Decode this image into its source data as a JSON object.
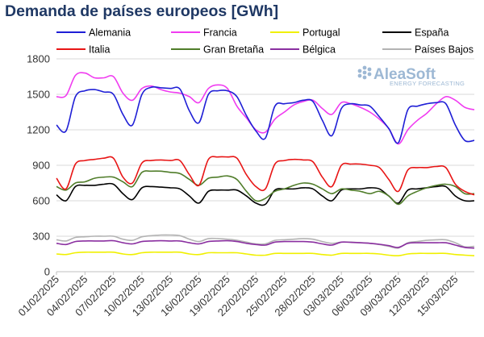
{
  "chart_data": {
    "type": "line",
    "title": "Demanda de países europeos [GWh]",
    "ylim": [
      0,
      1800
    ],
    "yticks": [
      0,
      300,
      600,
      900,
      1200,
      1500,
      1800
    ],
    "x_start": "01/02/2025",
    "x_end": "17/03/2025",
    "xtick_labels": [
      "01/02/2025",
      "04/02/2025",
      "07/02/2025",
      "10/02/2025",
      "13/02/2025",
      "16/02/2025",
      "19/02/2025",
      "22/02/2025",
      "25/02/2025",
      "28/02/2025",
      "03/03/2025",
      "06/03/2025",
      "09/03/2025",
      "12/03/2025",
      "15/03/2025"
    ],
    "grid": "horizontal",
    "legend_placement": "top",
    "x": [
      "01/02",
      "02/02",
      "03/02",
      "04/02",
      "05/02",
      "06/02",
      "07/02",
      "08/02",
      "09/02",
      "10/02",
      "11/02",
      "12/02",
      "13/02",
      "14/02",
      "15/02",
      "16/02",
      "17/02",
      "18/02",
      "19/02",
      "20/02",
      "21/02",
      "22/02",
      "23/02",
      "24/02",
      "25/02",
      "26/02",
      "27/02",
      "28/02",
      "01/03",
      "02/03",
      "03/03",
      "04/03",
      "05/03",
      "06/03",
      "07/03",
      "08/03",
      "09/03",
      "10/03",
      "11/03",
      "12/03",
      "13/03",
      "14/03",
      "15/03",
      "16/03",
      "17/03"
    ],
    "series": [
      {
        "name": "Alemania",
        "color": "#1f1fd6",
        "values": [
          1240,
          1190,
          1480,
          1530,
          1540,
          1520,
          1500,
          1330,
          1240,
          1500,
          1560,
          1555,
          1550,
          1545,
          1360,
          1260,
          1500,
          1530,
          1530,
          1480,
          1320,
          1190,
          1130,
          1400,
          1420,
          1430,
          1450,
          1440,
          1280,
          1150,
          1380,
          1420,
          1410,
          1400,
          1310,
          1210,
          1090,
          1370,
          1400,
          1420,
          1430,
          1420,
          1240,
          1110,
          1110
        ]
      },
      {
        "name": "Francia",
        "color": "#f03cf0",
        "values": [
          1480,
          1490,
          1660,
          1680,
          1640,
          1640,
          1650,
          1510,
          1450,
          1550,
          1570,
          1540,
          1520,
          1510,
          1480,
          1430,
          1550,
          1580,
          1550,
          1400,
          1300,
          1200,
          1180,
          1290,
          1350,
          1410,
          1440,
          1450,
          1380,
          1330,
          1430,
          1420,
          1390,
          1350,
          1290,
          1210,
          1080,
          1200,
          1280,
          1340,
          1420,
          1480,
          1450,
          1390,
          1370
        ]
      },
      {
        "name": "Portugal",
        "color": "#f0f000",
        "values": [
          150,
          145,
          160,
          165,
          165,
          165,
          165,
          150,
          145,
          160,
          165,
          165,
          165,
          165,
          150,
          145,
          160,
          160,
          160,
          160,
          150,
          140,
          140,
          155,
          155,
          155,
          155,
          155,
          145,
          140,
          155,
          155,
          155,
          155,
          150,
          140,
          135,
          150,
          155,
          155,
          155,
          155,
          145,
          140,
          135
        ]
      },
      {
        "name": "España",
        "color": "#000000",
        "values": [
          650,
          600,
          720,
          730,
          730,
          740,
          740,
          660,
          610,
          710,
          720,
          715,
          710,
          700,
          640,
          580,
          680,
          690,
          690,
          690,
          640,
          580,
          570,
          690,
          700,
          700,
          710,
          700,
          640,
          600,
          690,
          700,
          700,
          710,
          700,
          640,
          580,
          690,
          700,
          710,
          720,
          720,
          640,
          600,
          600
        ]
      },
      {
        "name": "Italia",
        "color": "#e81515",
        "values": [
          790,
          700,
          910,
          940,
          950,
          960,
          960,
          800,
          750,
          920,
          940,
          945,
          940,
          940,
          820,
          730,
          950,
          970,
          970,
          960,
          820,
          720,
          700,
          910,
          940,
          950,
          945,
          930,
          800,
          720,
          900,
          910,
          910,
          900,
          880,
          780,
          680,
          860,
          880,
          880,
          890,
          880,
          740,
          680,
          650
        ]
      },
      {
        "name": "Gran Bretaña",
        "color": "#507d2a",
        "values": [
          720,
          690,
          750,
          760,
          790,
          800,
          800,
          760,
          720,
          840,
          850,
          850,
          840,
          830,
          780,
          730,
          790,
          800,
          810,
          780,
          680,
          600,
          620,
          680,
          700,
          730,
          750,
          740,
          700,
          660,
          700,
          690,
          680,
          660,
          680,
          640,
          570,
          640,
          680,
          710,
          730,
          740,
          720,
          660,
          660
        ]
      },
      {
        "name": "Bélgica",
        "color": "#8a2fa0",
        "values": [
          240,
          230,
          255,
          260,
          260,
          260,
          262,
          245,
          235,
          255,
          260,
          262,
          260,
          260,
          245,
          235,
          255,
          260,
          262,
          255,
          240,
          230,
          225,
          250,
          255,
          255,
          255,
          250,
          235,
          225,
          250,
          248,
          245,
          240,
          232,
          220,
          205,
          240,
          245,
          245,
          245,
          245,
          225,
          205,
          200
        ]
      },
      {
        "name": "Países Bajos",
        "color": "#b3b3b3",
        "values": [
          270,
          260,
          290,
          295,
          300,
          300,
          300,
          275,
          265,
          295,
          305,
          310,
          310,
          305,
          275,
          255,
          280,
          280,
          275,
          265,
          250,
          235,
          235,
          265,
          270,
          275,
          280,
          275,
          255,
          240,
          250,
          250,
          245,
          240,
          230,
          215,
          200,
          245,
          255,
          265,
          270,
          270,
          245,
          210,
          215
        ]
      }
    ]
  },
  "logo": {
    "main": "AleaSoft",
    "sub": "ENERGY FORECASTING"
  }
}
